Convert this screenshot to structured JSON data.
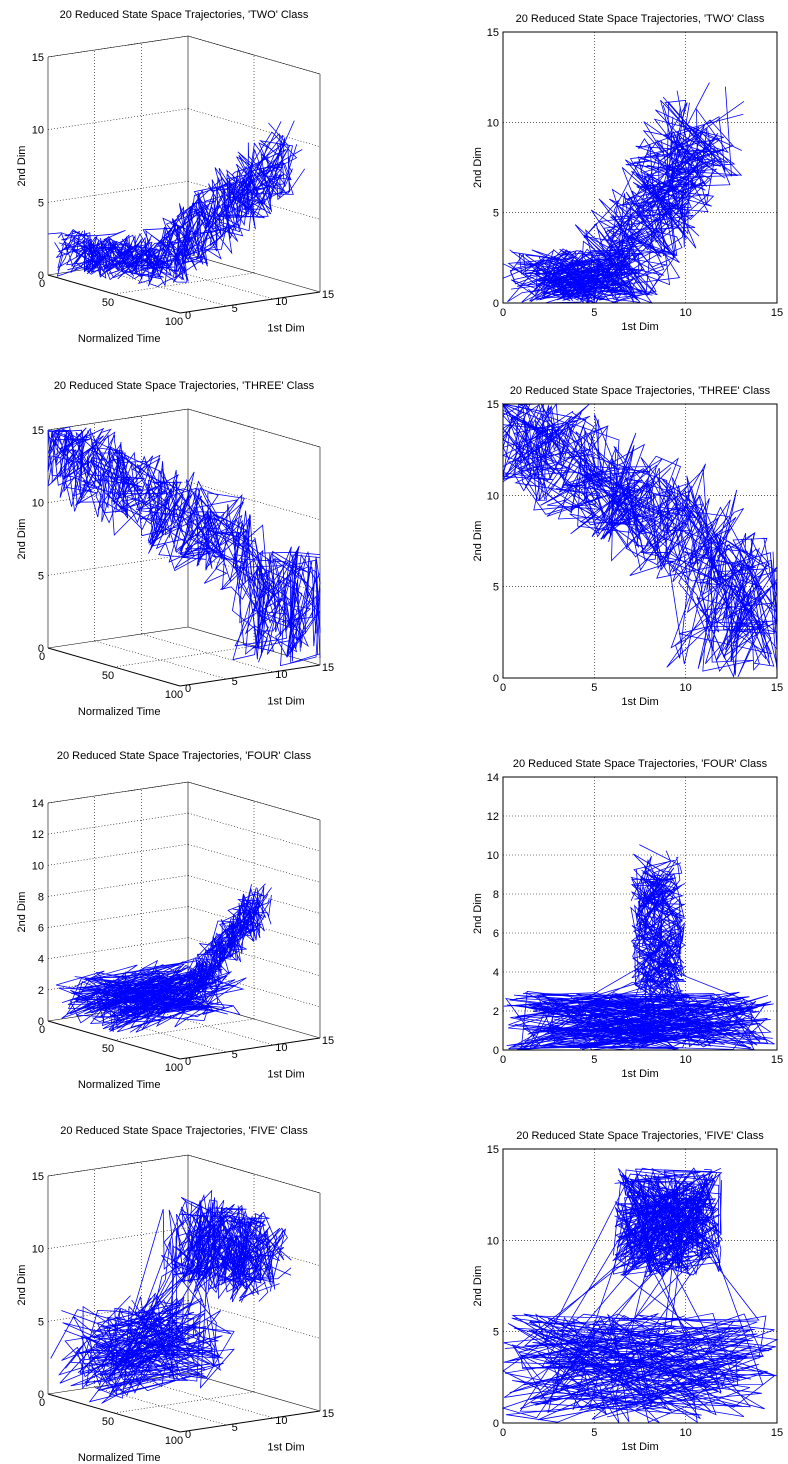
{
  "figure": {
    "line_color": "#0000ff",
    "axis_color": "#000000",
    "grid_color": "#000000"
  },
  "chart_data": [
    {
      "type": "line",
      "projection": "3d",
      "title": "20 Reduced State Space Trajectories, 'TWO' Class",
      "xlabel": "1st Dim",
      "ylabel": "Normalized Time",
      "zlabel": "2nd Dim",
      "xlim": [
        0,
        15
      ],
      "ylim": [
        0,
        100
      ],
      "zlim": [
        0,
        15
      ],
      "xticks": [
        "0",
        "5",
        "10",
        "15"
      ],
      "yticks": [
        "0",
        "50",
        "100"
      ],
      "zticks": [
        "0",
        "5",
        "10",
        "15"
      ],
      "grid": true,
      "series_count": 20
    },
    {
      "type": "line",
      "projection": "2d",
      "title": "20 Reduced State Space Trajectories, 'TWO' Class",
      "xlabel": "1st Dim",
      "ylabel": "2nd Dim",
      "xlim": [
        0,
        15
      ],
      "ylim": [
        0,
        15
      ],
      "xticks": [
        "0",
        "5",
        "10",
        "15"
      ],
      "yticks": [
        "0",
        "5",
        "10",
        "15"
      ],
      "grid": true,
      "series_count": 20
    },
    {
      "type": "line",
      "projection": "3d",
      "title": "20 Reduced State Space Trajectories, 'THREE' Class",
      "xlabel": "1st Dim",
      "ylabel": "Normalized Time",
      "zlabel": "2nd Dim",
      "xlim": [
        0,
        15
      ],
      "ylim": [
        0,
        100
      ],
      "zlim": [
        0,
        15
      ],
      "xticks": [
        "0",
        "5",
        "10",
        "15"
      ],
      "yticks": [
        "0",
        "50",
        "100"
      ],
      "zticks": [
        "0",
        "5",
        "10",
        "15"
      ],
      "grid": true,
      "series_count": 20
    },
    {
      "type": "line",
      "projection": "2d",
      "title": "20 Reduced State Space Trajectories, 'THREE' Class",
      "xlabel": "1st Dim",
      "ylabel": "2nd Dim",
      "xlim": [
        0,
        15
      ],
      "ylim": [
        0,
        15
      ],
      "xticks": [
        "0",
        "5",
        "10",
        "15"
      ],
      "yticks": [
        "0",
        "5",
        "10",
        "15"
      ],
      "grid": true,
      "series_count": 20
    },
    {
      "type": "line",
      "projection": "3d",
      "title": "20 Reduced State Space Trajectories, 'FOUR' Class",
      "xlabel": "1st Dim",
      "ylabel": "Normalized Time",
      "zlabel": "2nd Dim",
      "xlim": [
        0,
        15
      ],
      "ylim": [
        0,
        100
      ],
      "zlim": [
        0,
        14
      ],
      "xticks": [
        "0",
        "5",
        "10",
        "15"
      ],
      "yticks": [
        "0",
        "50",
        "100"
      ],
      "zticks": [
        "0",
        "2",
        "4",
        "6",
        "8",
        "10",
        "12",
        "14"
      ],
      "grid": true,
      "series_count": 20
    },
    {
      "type": "line",
      "projection": "2d",
      "title": "20 Reduced State Space Trajectories, 'FOUR' Class",
      "xlabel": "1st Dim",
      "ylabel": "2nd Dim",
      "xlim": [
        0,
        15
      ],
      "ylim": [
        0,
        14
      ],
      "xticks": [
        "0",
        "5",
        "10",
        "15"
      ],
      "yticks": [
        "0",
        "2",
        "4",
        "6",
        "8",
        "10",
        "12",
        "14"
      ],
      "grid": true,
      "series_count": 20
    },
    {
      "type": "line",
      "projection": "3d",
      "title": "20 Reduced State Space Trajectories, 'FIVE' Class",
      "xlabel": "1st Dim",
      "ylabel": "Normalized Time",
      "zlabel": "2nd Dim",
      "xlim": [
        0,
        15
      ],
      "ylim": [
        0,
        100
      ],
      "zlim": [
        0,
        15
      ],
      "xticks": [
        "0",
        "5",
        "10",
        "15"
      ],
      "yticks": [
        "0",
        "50",
        "100"
      ],
      "zticks": [
        "0",
        "5",
        "10",
        "15"
      ],
      "grid": true,
      "series_count": 20
    },
    {
      "type": "line",
      "projection": "2d",
      "title": "20 Reduced State Space Trajectories, 'FIVE' Class",
      "xlabel": "1st Dim",
      "ylabel": "2nd Dim",
      "xlim": [
        0,
        15
      ],
      "ylim": [
        0,
        15
      ],
      "xticks": [
        "0",
        "5",
        "10",
        "15"
      ],
      "yticks": [
        "0",
        "5",
        "10",
        "15"
      ],
      "grid": true,
      "series_count": 20
    }
  ]
}
